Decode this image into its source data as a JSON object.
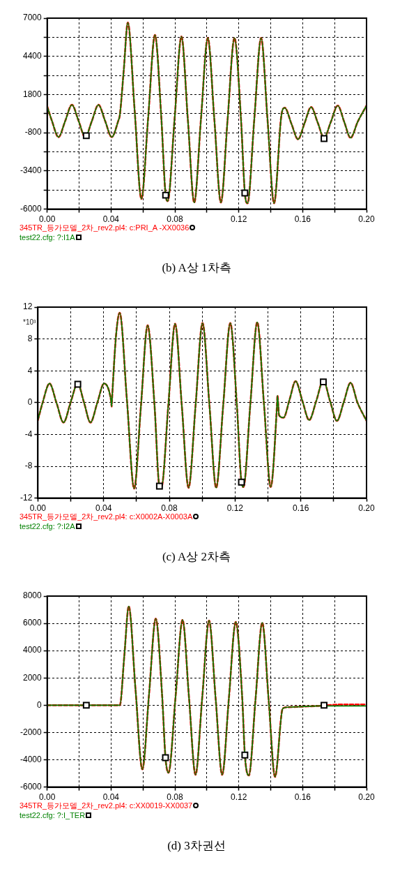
{
  "chart_data": [
    {
      "type": "line",
      "annotations": [
        "(b) A상 1차측"
      ],
      "x": [
        0,
        0.003,
        0.0071,
        0.0113,
        0.0155,
        0.0197,
        0.0238,
        0.028,
        0.0321,
        0.0363,
        0.0404,
        0.0445,
        0.0455,
        0.048,
        0.0505,
        0.0548,
        0.059,
        0.0633,
        0.0675,
        0.0715,
        0.0742,
        0.0755,
        0.0798,
        0.0841,
        0.0881,
        0.0921,
        0.0963,
        0.1006,
        0.1047,
        0.1088,
        0.113,
        0.1173,
        0.1214,
        0.1238,
        0.1255,
        0.1297,
        0.134,
        0.138,
        0.1421,
        0.1467,
        0.1488,
        0.153,
        0.1571,
        0.1612,
        0.1653,
        0.1694,
        0.1734,
        0.1777,
        0.182,
        0.186,
        0.19,
        0.1945,
        0.2
      ],
      "series": [
        {
          "name": "345TR_등가모델_2차_rev2.pl4: c:PRI_A -XX0036",
          "color": "#ff0000",
          "line_style": "dashed",
          "values": [
            1000,
            0,
            -1100,
            0,
            1100,
            0,
            -1100,
            0,
            1100,
            0,
            -1100,
            0,
            400,
            3500,
            6700,
            700,
            -5300,
            300,
            5850,
            200,
            -5050,
            -5450,
            150,
            5750,
            100,
            -5550,
            100,
            5650,
            100,
            -5550,
            100,
            5650,
            100,
            -4900,
            -5600,
            100,
            5650,
            100,
            -5600,
            400,
            900,
            -200,
            -1250,
            -150,
            950,
            -100,
            -1150,
            -50,
            1050,
            -50,
            -1150,
            -50,
            1050
          ]
        },
        {
          "name": "test22.cfg: ?:I1A",
          "color": "#008000",
          "line_style": "solid",
          "values": [
            1000,
            0,
            -1100,
            0,
            1100,
            0,
            -1100,
            0,
            1100,
            0,
            -1100,
            0,
            400,
            3500,
            6700,
            700,
            -5300,
            300,
            5850,
            200,
            -5050,
            -5450,
            150,
            5750,
            100,
            -5550,
            100,
            5650,
            100,
            -5550,
            100,
            5650,
            100,
            -4900,
            -5600,
            100,
            5650,
            100,
            -5600,
            400,
            900,
            -200,
            -1250,
            -150,
            950,
            -100,
            -1150,
            -50,
            1050,
            -50,
            -1150,
            -50,
            1050
          ]
        },
        {
          "type": "scatter",
          "color": "#000000",
          "marker": "square",
          "x": [
            0.0245,
            0.0742,
            0.1238,
            0.1734
          ],
          "values": [
            -1000,
            -5050,
            -4900,
            -1200
          ]
        }
      ],
      "xlim": [
        0,
        0.2
      ],
      "ylim": [
        -6000,
        7000
      ],
      "xticks": [
        {
          "value": 0,
          "label": "0.00"
        },
        {
          "value": 0.02,
          "label": null
        },
        0.04,
        {
          "value": 0.06,
          "label": null
        },
        0.08,
        {
          "value": 0.1,
          "label": null
        },
        0.12,
        {
          "value": 0.14,
          "label": null
        },
        0.16,
        {
          "value": 0.18,
          "label": null
        },
        {
          "value": 0.2,
          "label": "0.20"
        }
      ],
      "yticks": [
        -6000,
        {
          "value": -4700,
          "label": null
        },
        -3400,
        {
          "value": -2100,
          "label": null
        },
        -800,
        {
          "value": 500,
          "label": null
        },
        1800,
        {
          "value": 3100,
          "label": null
        },
        4400,
        {
          "value": 5700,
          "label": null
        },
        7000
      ],
      "grid": true,
      "legend": "bottom"
    },
    {
      "type": "line",
      "annotations": [
        "(c) A상 2차측"
      ],
      "ylabel": "*10³",
      "x": [
        0,
        0.0029,
        0.0071,
        0.0113,
        0.0156,
        0.0199,
        0.0242,
        0.0281,
        0.032,
        0.0362,
        0.0403,
        0.0445,
        0.0449,
        0.0451,
        0.0476,
        0.0498,
        0.0542,
        0.0586,
        0.0627,
        0.0668,
        0.071,
        0.074,
        0.0752,
        0.0794,
        0.0835,
        0.0876,
        0.0917,
        0.096,
        0.1002,
        0.1044,
        0.1085,
        0.1128,
        0.1171,
        0.1211,
        0.1239,
        0.1251,
        0.1293,
        0.1335,
        0.1376,
        0.1417,
        0.1455,
        0.1458,
        0.1468,
        0.1495,
        0.1532,
        0.1568,
        0.161,
        0.1651,
        0.1694,
        0.1737,
        0.1778,
        0.182,
        0.1862,
        0.1903,
        0.1945,
        0.2
      ],
      "series": [
        {
          "name": "345TR_등가모델_2차_rev2.pl4: c:X0002A-X0003A",
          "color": "#ff0000",
          "line_style": "dashed",
          "values": [
            -2.2,
            0,
            2.4,
            0,
            -2.5,
            0,
            2.4,
            0,
            -2.5,
            0,
            2.4,
            0.3,
            -0.5,
            0.3,
            8.5,
            11.3,
            0.3,
            -10.8,
            -0.5,
            9.7,
            -0.4,
            -10.5,
            -10.6,
            -0.3,
            9.9,
            -0.4,
            -10.7,
            -0.3,
            10,
            -0.3,
            -10.7,
            -0.3,
            10,
            -0.3,
            -10,
            -10.6,
            -0.2,
            10.1,
            -0.2,
            -10.6,
            -0.4,
            0.9,
            -1.6,
            -1.9,
            0.4,
            2.7,
            0.2,
            -2.2,
            0.2,
            2.8,
            0.2,
            -2.3,
            0.1,
            2.5,
            0,
            -2.3
          ]
        },
        {
          "name": "test22.cfg: ?:I2A",
          "color": "#008000",
          "line_style": "solid",
          "values": [
            -2.2,
            0,
            2.4,
            0,
            -2.5,
            0,
            2.4,
            0,
            -2.5,
            0,
            2.4,
            0.3,
            -0.5,
            0.3,
            8.5,
            11.3,
            0.3,
            -10.8,
            -0.5,
            9.7,
            -0.4,
            -10.5,
            -10.6,
            -0.3,
            9.9,
            -0.4,
            -10.7,
            -0.3,
            10,
            -0.3,
            -10.7,
            -0.3,
            10,
            -0.3,
            -10,
            -10.6,
            -0.2,
            10.1,
            -0.2,
            -10.6,
            -0.4,
            0.9,
            -1.6,
            -1.9,
            0.4,
            2.7,
            0.2,
            -2.2,
            0.2,
            2.8,
            0.2,
            -2.3,
            0.1,
            2.5,
            0,
            -2.3
          ]
        },
        {
          "type": "scatter",
          "color": "#000000",
          "marker": "square",
          "x": [
            0.0243,
            0.074,
            0.1239,
            0.1737
          ],
          "values": [
            2.3,
            -10.5,
            -10,
            2.6
          ]
        }
      ],
      "xlim": [
        0,
        0.2
      ],
      "ylim": [
        -12,
        12
      ],
      "xticks": [
        {
          "value": 0,
          "label": "0.00"
        },
        {
          "value": 0.02,
          "label": null
        },
        0.04,
        {
          "value": 0.06,
          "label": null
        },
        0.08,
        {
          "value": 0.1,
          "label": null
        },
        0.12,
        {
          "value": 0.14,
          "label": null
        },
        0.16,
        {
          "value": 0.18,
          "label": null
        },
        {
          "value": 0.2,
          "label": "0.20"
        }
      ],
      "yticks": [
        -12,
        -8,
        -4,
        0,
        4,
        8,
        12
      ],
      "grid": true,
      "legend": "bottom"
    },
    {
      "type": "line",
      "annotations": [
        "(d) 3차권선"
      ],
      "x": [
        0,
        0.0455,
        0.0483,
        0.0511,
        0.0553,
        0.0596,
        0.0638,
        0.068,
        0.072,
        0.0741,
        0.076,
        0.0804,
        0.0848,
        0.0888,
        0.0929,
        0.0971,
        0.1014,
        0.1055,
        0.1096,
        0.1138,
        0.1181,
        0.1222,
        0.1238,
        0.1263,
        0.1305,
        0.1347,
        0.1387,
        0.1427,
        0.1475,
        0.1498,
        0.16,
        0.17,
        0.185,
        0.2
      ],
      "series": [
        {
          "name": "345TR_등가모델_2차_rev2.pl4: c:XX0019-XX0037",
          "color": "#ff0000",
          "line_style": "dashed",
          "values": [
            0,
            0,
            3600,
            7250,
            1200,
            -4700,
            800,
            6350,
            700,
            -3850,
            -4950,
            600,
            6250,
            600,
            -5100,
            550,
            6200,
            500,
            -5100,
            500,
            6100,
            450,
            -3650,
            -5150,
            450,
            6050,
            400,
            -5250,
            -250,
            -150,
            -100,
            -50,
            50,
            50
          ]
        },
        {
          "name": "test22.cfg: ?:I_TER",
          "color": "#008000",
          "line_style": "solid",
          "values": [
            0,
            0,
            3600,
            7250,
            1200,
            -4700,
            800,
            6350,
            700,
            -3850,
            -4950,
            600,
            6250,
            600,
            -5100,
            550,
            6200,
            500,
            -5100,
            500,
            6100,
            450,
            -3650,
            -5150,
            450,
            6050,
            400,
            -5250,
            -250,
            -150,
            -100,
            -50,
            -50,
            -50
          ]
        },
        {
          "type": "scatter",
          "color": "#000000",
          "marker": "square",
          "x": [
            0.0245,
            0.0741,
            0.1238,
            0.1734
          ],
          "values": [
            0,
            -3850,
            -3650,
            0
          ]
        }
      ],
      "xlim": [
        0,
        0.2
      ],
      "ylim": [
        -6000,
        8000
      ],
      "xticks": [
        {
          "value": 0,
          "label": "0.00"
        },
        {
          "value": 0.02,
          "label": null
        },
        0.04,
        {
          "value": 0.06,
          "label": null
        },
        0.08,
        {
          "value": 0.1,
          "label": null
        },
        0.12,
        {
          "value": 0.14,
          "label": null
        },
        0.16,
        {
          "value": 0.18,
          "label": null
        },
        {
          "value": 0.2,
          "label": "0.20"
        }
      ],
      "yticks": [
        -6000,
        -4000,
        -2000,
        0,
        2000,
        4000,
        6000,
        8000
      ],
      "grid": true,
      "legend": "bottom"
    }
  ]
}
